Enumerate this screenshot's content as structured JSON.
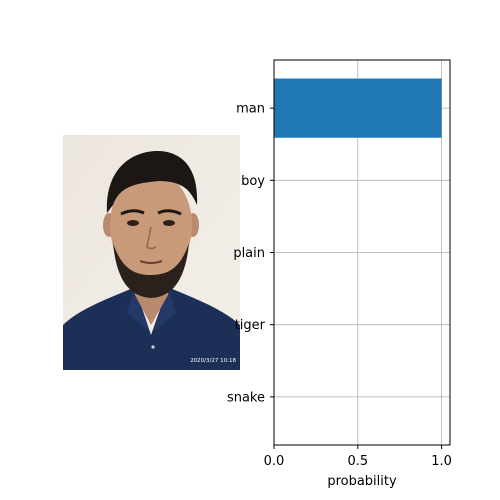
{
  "image": {
    "caption_stamp": "2020/3/27 10:18"
  },
  "chart_data": {
    "type": "bar",
    "orientation": "horizontal",
    "categories": [
      "man",
      "boy",
      "plain",
      "tiger",
      "snake"
    ],
    "values": [
      1.0,
      0.0,
      0.0,
      0.0,
      0.0
    ],
    "xlabel": "probability",
    "ylabel": "",
    "xlim": [
      0,
      1.05
    ],
    "xticks": [
      0.0,
      0.5,
      1.0
    ],
    "xtick_labels": [
      "0.0",
      "0.5",
      "1.0"
    ],
    "grid": true,
    "bar_color": "#1f77b4"
  }
}
